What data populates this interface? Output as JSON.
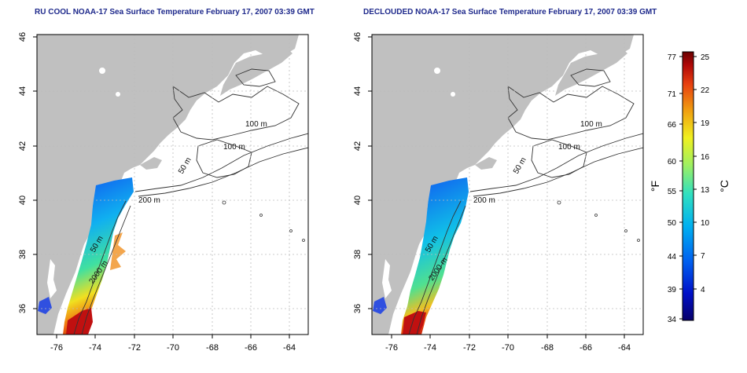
{
  "maps": [
    {
      "id": "left",
      "title": "RU COOL NOAA-17 Sea Surface Temperature February 17, 2007 03:39 GMT",
      "isobath_labels": [
        "100 m",
        "100 m",
        "50 m",
        "200 m",
        "50 m",
        "2000 m"
      ],
      "lat_ticks": [
        "36",
        "38",
        "40",
        "42",
        "44",
        "46"
      ],
      "lon_ticks": [
        "-76",
        "-74",
        "-72",
        "-70",
        "-68",
        "-66",
        "-64"
      ]
    },
    {
      "id": "right",
      "title": "DECLOUDED NOAA-17 Sea Surface Temperature February 17, 2007 03:39 GMT",
      "isobath_labels": [
        "100 m",
        "100 m",
        "50 m",
        "200 m",
        "50 m",
        "2000 m"
      ],
      "lat_ticks": [
        "36",
        "38",
        "40",
        "42",
        "44",
        "46"
      ],
      "lon_ticks": [
        "-76",
        "-74",
        "-72",
        "-70",
        "-68",
        "-66",
        "-64"
      ]
    }
  ],
  "colorbar": {
    "fahrenheit_unit": "°F",
    "celsius_unit": "°C",
    "fahrenheit_ticks": [
      "77",
      "71",
      "66",
      "60",
      "55",
      "50",
      "44",
      "39",
      "34"
    ],
    "celsius_ticks": [
      "25",
      "22",
      "19",
      "16",
      "13",
      "10",
      "7",
      "4"
    ],
    "colors": [
      "#08006a",
      "#0010c8",
      "#0060f0",
      "#00b0f0",
      "#30e0c0",
      "#a0f060",
      "#f0f020",
      "#f0a010",
      "#e84010",
      "#b00808",
      "#6a0000"
    ]
  },
  "colors": {
    "land": "#c0c0c0",
    "water": "#ffffff",
    "grid": "#bcbcbc",
    "contour": "#333333",
    "title": "#1f2a8c"
  }
}
